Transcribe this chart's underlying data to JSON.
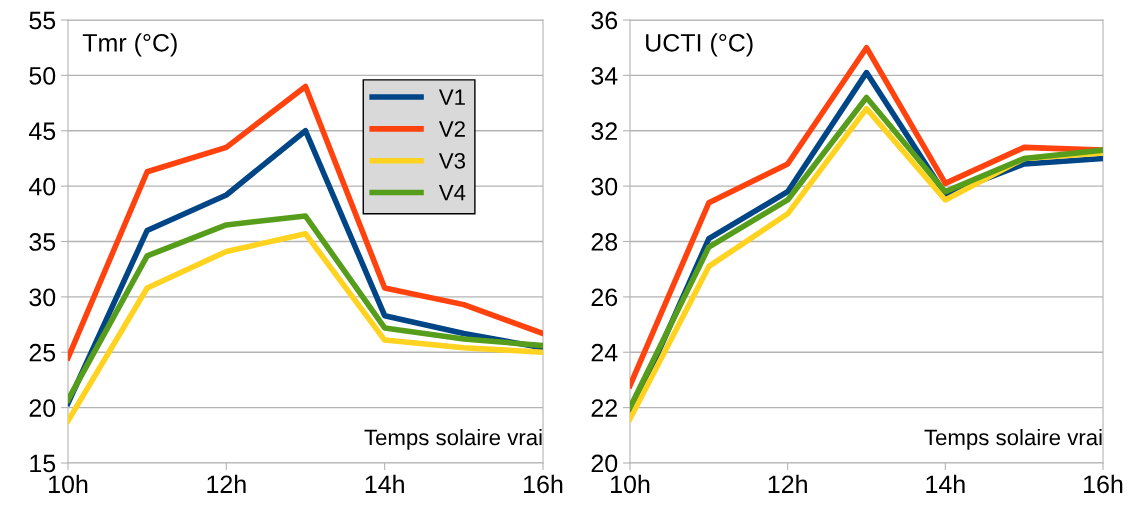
{
  "chart_data": [
    {
      "type": "line",
      "ylabel": "Tmr (°C)",
      "xlabel": "Temps solaire vrai",
      "x": [
        10,
        11,
        12,
        13,
        14,
        15,
        16
      ],
      "series": [
        {
          "name": "V1",
          "color": "#004586",
          "values": [
            20.4,
            36.0,
            39.2,
            45.0,
            28.3,
            26.7,
            25.4
          ]
        },
        {
          "name": "V2",
          "color": "#ff420e",
          "values": [
            24.5,
            41.3,
            43.5,
            49.0,
            30.8,
            29.3,
            26.7
          ]
        },
        {
          "name": "V3",
          "color": "#ffd320",
          "values": [
            18.8,
            30.8,
            34.1,
            35.7,
            26.1,
            25.4,
            25.0
          ]
        },
        {
          "name": "V4",
          "color": "#579d1c",
          "values": [
            20.7,
            33.7,
            36.5,
            37.3,
            27.2,
            26.2,
            25.6
          ]
        }
      ],
      "xlim": [
        10,
        16
      ],
      "xticks": [
        {
          "value": 10,
          "label": "10h"
        },
        {
          "value": 12,
          "label": "12h"
        },
        {
          "value": 14,
          "label": "14h"
        },
        {
          "value": 16,
          "label": "16h"
        }
      ],
      "ylim": [
        15,
        55
      ],
      "yticks": [
        15,
        20,
        25,
        30,
        35,
        40,
        45,
        50,
        55
      ],
      "grid": "y",
      "legend": "top right",
      "marker": "none",
      "line_style": "solid"
    },
    {
      "type": "line",
      "ylabel": "UCTI (°C)",
      "xlabel": "Temps solaire vrai",
      "x": [
        10,
        11,
        12,
        13,
        14,
        15,
        16
      ],
      "series": [
        {
          "color": "#004586",
          "values": [
            21.7,
            28.1,
            29.8,
            34.1,
            29.7,
            30.8,
            31.0
          ]
        },
        {
          "color": "#ff420e",
          "values": [
            22.8,
            29.4,
            30.8,
            35.0,
            30.1,
            31.4,
            31.3
          ]
        },
        {
          "color": "#ffd320",
          "values": [
            21.6,
            27.1,
            29.0,
            32.8,
            29.5,
            31.0,
            31.2
          ]
        },
        {
          "color": "#579d1c",
          "values": [
            22.0,
            27.8,
            29.5,
            33.2,
            29.8,
            31.0,
            31.3
          ]
        }
      ],
      "xlim": [
        10,
        16
      ],
      "xticks": [
        {
          "value": 10,
          "label": "10h"
        },
        {
          "value": 12,
          "label": "12h"
        },
        {
          "value": 14,
          "label": "14h"
        },
        {
          "value": 16,
          "label": "16h"
        }
      ],
      "ylim": [
        20,
        36
      ],
      "yticks": [
        20,
        22,
        24,
        26,
        28,
        30,
        32,
        34,
        36
      ],
      "grid": "y",
      "marker": "none",
      "line_style": "solid"
    }
  ]
}
